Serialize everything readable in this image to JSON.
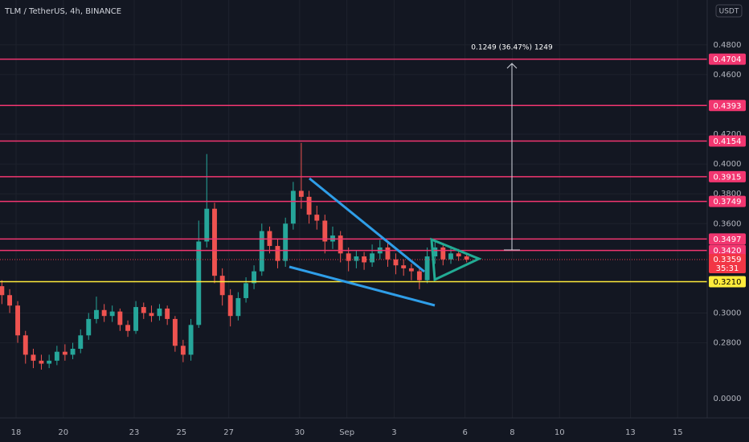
{
  "chart_data": {
    "type": "candlestick",
    "title": "TLM / TetherUS, 4h, BINANCE",
    "currency": "USDT",
    "xlim": [
      -0.68,
      29.25
    ],
    "xticks": [
      {
        "value": 0,
        "label": "18"
      },
      {
        "value": 2,
        "label": "20"
      },
      {
        "value": 5,
        "label": "23"
      },
      {
        "value": 7,
        "label": "25"
      },
      {
        "value": 9,
        "label": "27"
      },
      {
        "value": 12,
        "label": "30"
      },
      {
        "value": 14,
        "label": "Sep"
      },
      {
        "value": 16,
        "label": "3"
      },
      {
        "value": 19,
        "label": "6"
      },
      {
        "value": 21,
        "label": "8"
      },
      {
        "value": 23,
        "label": "10"
      },
      {
        "value": 26,
        "label": "13"
      },
      {
        "value": 28,
        "label": "15"
      }
    ],
    "ylim": [
      0.2296,
      0.5101
    ],
    "yticks": [
      {
        "value": 0.48,
        "label": "0.4800"
      },
      {
        "value": 0.46,
        "label": "0.4600"
      },
      {
        "value": 0.42,
        "label": "0.4200"
      },
      {
        "value": 0.4,
        "label": "0.4000"
      },
      {
        "value": 0.38,
        "label": "0.3800"
      },
      {
        "value": 0.36,
        "label": "0.3600"
      },
      {
        "value": 0.3,
        "label": "0.3000"
      },
      {
        "value": 0.28,
        "label": "0.2800"
      }
    ],
    "bottom_label": "0.0000",
    "up_color": "#26a69a",
    "down_color": "#ef5350",
    "candles": {
      "x": [
        -0.6,
        -0.27,
        0.07,
        0.4,
        0.73,
        1.07,
        1.4,
        1.73,
        2.07,
        2.4,
        2.73,
        3.07,
        3.4,
        3.73,
        4.07,
        4.4,
        4.73,
        5.07,
        5.4,
        5.73,
        6.07,
        6.4,
        6.73,
        7.07,
        7.4,
        7.73,
        8.07,
        8.4,
        8.73,
        9.07,
        9.4,
        9.73,
        10.07,
        10.4,
        10.73,
        11.07,
        11.4,
        11.73,
        12.07,
        12.4,
        12.73,
        13.07,
        13.4,
        13.73,
        14.07,
        14.4,
        14.73,
        15.07,
        15.4,
        15.73,
        16.07,
        16.4,
        16.73,
        17.07,
        17.4,
        17.73,
        18.07,
        18.4,
        18.73,
        19.07
      ],
      "open": [
        0.318,
        0.312,
        0.305,
        0.285,
        0.272,
        0.268,
        0.266,
        0.268,
        0.274,
        0.272,
        0.276,
        0.285,
        0.296,
        0.302,
        0.298,
        0.301,
        0.292,
        0.288,
        0.304,
        0.3,
        0.298,
        0.303,
        0.296,
        0.278,
        0.272,
        0.292,
        0.348,
        0.37,
        0.325,
        0.312,
        0.298,
        0.31,
        0.32,
        0.328,
        0.355,
        0.345,
        0.335,
        0.36,
        0.382,
        0.378,
        0.366,
        0.362,
        0.348,
        0.352,
        0.34,
        0.335,
        0.338,
        0.334,
        0.34,
        0.344,
        0.336,
        0.332,
        0.33,
        0.328,
        0.322,
        0.338,
        0.344,
        0.336,
        0.34,
        0.338
      ],
      "high": [
        0.322,
        0.316,
        0.308,
        0.288,
        0.276,
        0.272,
        0.272,
        0.278,
        0.279,
        0.28,
        0.289,
        0.3,
        0.311,
        0.306,
        0.305,
        0.303,
        0.295,
        0.308,
        0.307,
        0.305,
        0.306,
        0.305,
        0.298,
        0.282,
        0.296,
        0.362,
        0.4067,
        0.374,
        0.33,
        0.316,
        0.314,
        0.324,
        0.332,
        0.36,
        0.358,
        0.35,
        0.364,
        0.388,
        0.4142,
        0.382,
        0.372,
        0.366,
        0.358,
        0.355,
        0.344,
        0.342,
        0.341,
        0.346,
        0.349,
        0.347,
        0.34,
        0.336,
        0.333,
        0.331,
        0.344,
        0.348,
        0.347,
        0.345,
        0.343,
        0.34
      ],
      "low": [
        0.306,
        0.3,
        0.28,
        0.266,
        0.263,
        0.262,
        0.263,
        0.265,
        0.268,
        0.269,
        0.273,
        0.282,
        0.293,
        0.294,
        0.294,
        0.288,
        0.284,
        0.286,
        0.296,
        0.294,
        0.295,
        0.292,
        0.274,
        0.267,
        0.268,
        0.29,
        0.344,
        0.32,
        0.305,
        0.291,
        0.295,
        0.307,
        0.316,
        0.325,
        0.34,
        0.33,
        0.331,
        0.356,
        0.37,
        0.36,
        0.356,
        0.34,
        0.343,
        0.334,
        0.328,
        0.33,
        0.329,
        0.331,
        0.336,
        0.331,
        0.326,
        0.325,
        0.322,
        0.316,
        0.32,
        0.333,
        0.332,
        0.333,
        0.335,
        0.334
      ],
      "close": [
        0.312,
        0.305,
        0.285,
        0.272,
        0.268,
        0.266,
        0.268,
        0.274,
        0.272,
        0.276,
        0.285,
        0.296,
        0.302,
        0.298,
        0.301,
        0.292,
        0.288,
        0.304,
        0.3,
        0.298,
        0.303,
        0.296,
        0.278,
        0.272,
        0.292,
        0.348,
        0.37,
        0.325,
        0.312,
        0.298,
        0.31,
        0.32,
        0.328,
        0.355,
        0.345,
        0.335,
        0.36,
        0.382,
        0.378,
        0.366,
        0.362,
        0.348,
        0.352,
        0.34,
        0.335,
        0.338,
        0.334,
        0.34,
        0.344,
        0.336,
        0.332,
        0.33,
        0.328,
        0.322,
        0.338,
        0.344,
        0.336,
        0.34,
        0.338,
        0.3359
      ]
    },
    "levels": [
      {
        "value": 0.4704,
        "label": "0.4704",
        "color": "#f23670"
      },
      {
        "value": 0.4393,
        "label": "0.4393",
        "color": "#f23670"
      },
      {
        "value": 0.4154,
        "label": "0.4154",
        "color": "#f23670"
      },
      {
        "value": 0.3915,
        "label": "0.3915",
        "color": "#f23670"
      },
      {
        "value": 0.3749,
        "label": "0.3749",
        "color": "#f23670"
      },
      {
        "value": 0.3497,
        "label": "0.3497",
        "color": "#f23670"
      },
      {
        "value": 0.342,
        "label": "0.3420",
        "color": "#f23670"
      },
      {
        "value": 0.321,
        "label": "0.3210",
        "color": "#ffeb3b"
      }
    ],
    "last_price": {
      "value": 0.3359,
      "label": "0.3359",
      "countdown": "35:31",
      "color": "#f23645"
    },
    "measure_label": "0.1249 (36.47%) 1249"
  }
}
